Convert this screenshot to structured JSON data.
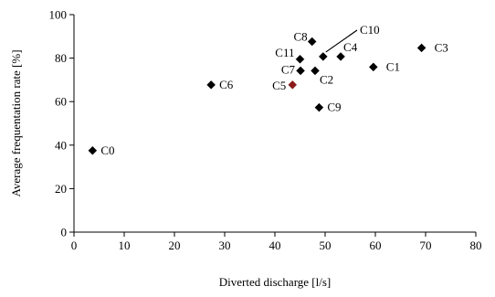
{
  "chart_data": {
    "type": "scatter",
    "title": "",
    "xlabel": "Diverted discharge [l/s]",
    "ylabel": "Average frequentation rate [%]",
    "xlim": [
      0,
      80
    ],
    "ylim": [
      0,
      100
    ],
    "xticks": [
      0,
      10,
      20,
      30,
      40,
      50,
      60,
      70,
      80
    ],
    "yticks": [
      0,
      20,
      40,
      60,
      80,
      100
    ],
    "grid": false,
    "legend": "none",
    "marker_color": "#000000",
    "highlight_color": "#8b1a1a",
    "points": [
      {
        "label": "C0",
        "x": 3.7,
        "y": 37.5,
        "highlight": false
      },
      {
        "label": "C6",
        "x": 27.3,
        "y": 67.7,
        "highlight": false
      },
      {
        "label": "C5",
        "x": 43.5,
        "y": 67.7,
        "highlight": true
      },
      {
        "label": "C7",
        "x": 45.1,
        "y": 74.2,
        "highlight": false
      },
      {
        "label": "C11",
        "x": 45.0,
        "y": 79.5,
        "highlight": false
      },
      {
        "label": "C8",
        "x": 47.4,
        "y": 87.6,
        "highlight": false
      },
      {
        "label": "C2",
        "x": 48.0,
        "y": 74.2,
        "highlight": false
      },
      {
        "label": "C10",
        "x": 49.6,
        "y": 80.7,
        "highlight": false
      },
      {
        "label": "C9",
        "x": 48.8,
        "y": 57.3,
        "highlight": false
      },
      {
        "label": "C4",
        "x": 53.1,
        "y": 80.7,
        "highlight": false
      },
      {
        "label": "C1",
        "x": 59.6,
        "y": 75.9,
        "highlight": false
      },
      {
        "label": "C3",
        "x": 69.2,
        "y": 84.7,
        "highlight": false
      }
    ]
  }
}
